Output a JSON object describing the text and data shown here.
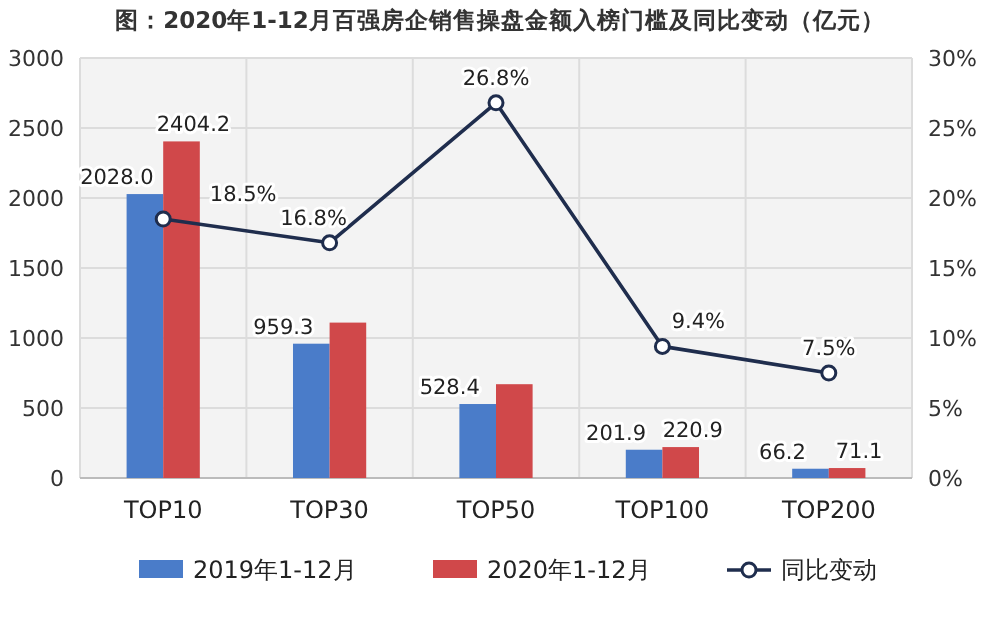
{
  "chart_data": {
    "type": "bar",
    "title": "图：2020年1-12月百强房企销售操盘金额入榜门槛及同比变动（亿元）",
    "categories": [
      "TOP10",
      "TOP30",
      "TOP50",
      "TOP100",
      "TOP200"
    ],
    "series": [
      {
        "name": "2019年1-12月",
        "color": "#4a7cc9",
        "values": [
          2028.0,
          959.3,
          528.4,
          201.9,
          66.2
        ],
        "value_labels": [
          "2028.0",
          "959.3",
          "528.4",
          "201.9",
          "66.2"
        ]
      },
      {
        "name": "2020年1-12月",
        "color": "#d0484a",
        "values": [
          2404.2,
          1110,
          670,
          220.9,
          71.1
        ],
        "value_labels": [
          "2404.2",
          null,
          null,
          "220.9",
          "71.1"
        ]
      },
      {
        "name": "同比变动",
        "type": "line",
        "axis": "y2",
        "color": "#1f2d4d",
        "values": [
          18.5,
          16.8,
          26.8,
          9.4,
          7.5
        ],
        "value_labels": [
          "18.5%",
          "16.8%",
          "26.8%",
          "9.4%",
          "7.5%"
        ]
      }
    ],
    "ylim": [
      0,
      3000
    ],
    "yticks": [
      0,
      500,
      1000,
      1500,
      2000,
      2500,
      3000
    ],
    "y2lim": [
      0,
      30
    ],
    "y2ticks": [
      {
        "value": 0,
        "label": "0%"
      },
      {
        "value": 5,
        "label": "5%"
      },
      {
        "value": 10,
        "label": "10%"
      },
      {
        "value": 15,
        "label": "15%"
      },
      {
        "value": 20,
        "label": "20%"
      },
      {
        "value": 25,
        "label": "25%"
      },
      {
        "value": 30,
        "label": "30%"
      }
    ],
    "grid": true,
    "legend": "bottom",
    "marker": "circle",
    "line_style": "solid"
  }
}
